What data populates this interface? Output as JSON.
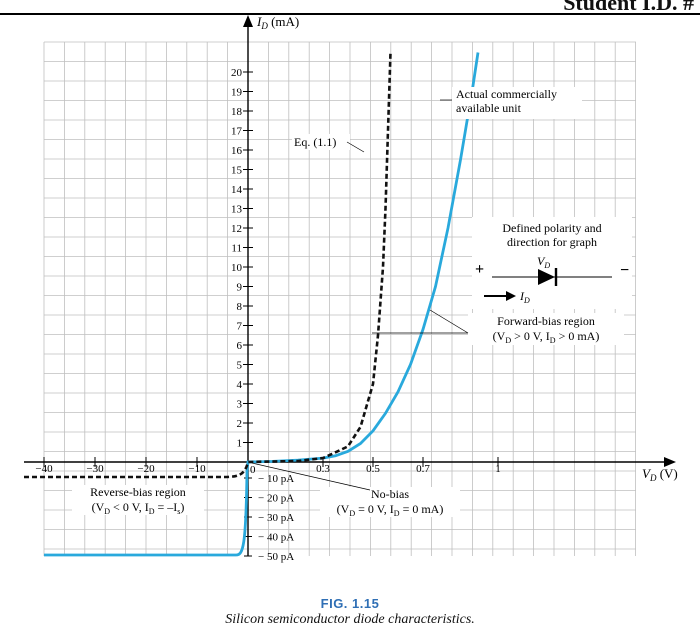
{
  "header": {
    "fragment": "Student I.D. #"
  },
  "chart_data": {
    "type": "line",
    "title": "",
    "ylabel": "I",
    "ylabel_sub": "D",
    "ylabel_unit": " (mA)",
    "xlabel": "V",
    "xlabel_sub": "D",
    "xlabel_unit": " (V)",
    "y_ticks": [
      "1",
      "2",
      "3",
      "4",
      "5",
      "6",
      "7",
      "8",
      "9",
      "10",
      "11",
      "12",
      "13",
      "14",
      "15",
      "16",
      "17",
      "18",
      "19",
      "20"
    ],
    "x_pos_ticks": [
      "0.3",
      "0.5",
      "0.7",
      "1"
    ],
    "x_neg_ticks": [
      "−40",
      "−30",
      "−20",
      "−10"
    ],
    "origin_label": "0",
    "reverse_current_ticks": [
      "− 10 pA",
      "− 20 pA",
      "− 30 pA",
      "− 40 pA",
      "− 50 pA"
    ],
    "grid": true,
    "series": [
      {
        "name": "Actual commercially available unit",
        "color": "#29a9dc",
        "style": "solid",
        "forward_points": [
          [
            0,
            0
          ],
          [
            0.1,
            0.03
          ],
          [
            0.2,
            0.1
          ],
          [
            0.3,
            0.2
          ],
          [
            0.35,
            0.32
          ],
          [
            0.4,
            0.55
          ],
          [
            0.45,
            0.95
          ],
          [
            0.5,
            1.6
          ],
          [
            0.55,
            2.5
          ],
          [
            0.6,
            3.6
          ],
          [
            0.65,
            5.0
          ],
          [
            0.7,
            6.8
          ],
          [
            0.75,
            9.0
          ],
          [
            0.8,
            12.0
          ],
          [
            0.85,
            15.5
          ],
          [
            0.9,
            19.3
          ],
          [
            0.92,
            21.0
          ]
        ],
        "reverse": "approx. −50 pA saturation across the reverse-bias region"
      },
      {
        "name": "Eq. (1.1)",
        "color": "#111111",
        "style": "dashed",
        "forward_points": [
          [
            0,
            0
          ],
          [
            0.2,
            0.05
          ],
          [
            0.3,
            0.2
          ],
          [
            0.4,
            0.8
          ],
          [
            0.45,
            1.8
          ],
          [
            0.5,
            4.0
          ],
          [
            0.52,
            6.5
          ],
          [
            0.54,
            10.0
          ],
          [
            0.55,
            13.0
          ],
          [
            0.57,
            21.0
          ]
        ],
        "reverse": "approx. −10 pA (−I_s) across the reverse-bias region"
      }
    ],
    "annotations": {
      "actual_unit_line1": "Actual commercially",
      "actual_unit_line2": "available unit",
      "eq": "Eq. (1.1)",
      "polarity_line1": "Defined polarity and",
      "polarity_line2": "direction for graph",
      "plus": "+",
      "minus": "−",
      "vd": "V",
      "vd_sub": "D",
      "id": "I",
      "id_sub": "D",
      "forward_line1": "Forward-bias region",
      "forward_line2": "(V",
      "forward_line2_sub1": "D",
      "forward_line2_mid": " > 0 V,  I",
      "forward_line2_sub2": "D",
      "forward_line2_end": " > 0  mA)",
      "reverse_line1": "Reverse-bias region",
      "reverse_line2_a": "(V",
      "reverse_line2_sub1": "D",
      "reverse_line2_b": " < 0 V, I",
      "reverse_line2_sub2": "D",
      "reverse_line2_c": " = –I",
      "reverse_line2_sub3": "s",
      "reverse_line2_d": ")",
      "nobias_line1": "No-bias",
      "nobias_line2_a": "(V",
      "nobias_line2_sub1": "D",
      "nobias_line2_b": " = 0 V, I",
      "nobias_line2_sub2": "D",
      "nobias_line2_c": " = 0 mA)"
    }
  },
  "figure": {
    "label": "FIG. 1.15",
    "caption": "Silicon semiconductor diode characteristics."
  }
}
